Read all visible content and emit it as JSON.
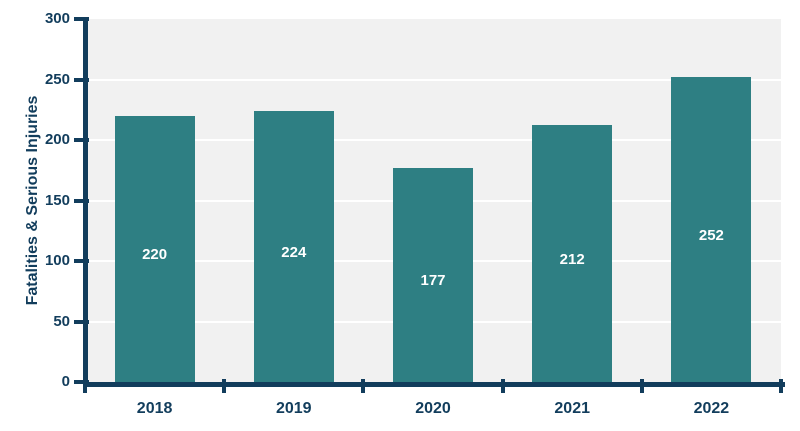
{
  "chart_data": {
    "type": "bar",
    "title": "",
    "xlabel": "",
    "ylabel": "Fatalities & Serious Injuries",
    "categories": [
      "2018",
      "2019",
      "2020",
      "2021",
      "2022"
    ],
    "values": [
      220,
      224,
      177,
      212,
      252
    ],
    "value_labels": [
      "220",
      "224",
      "177",
      "212",
      "252"
    ],
    "ylim": [
      0,
      300
    ],
    "yticks": [
      0,
      50,
      100,
      150,
      200,
      250,
      300
    ],
    "grid": "horizontal-white-lines",
    "legend_position": "none",
    "colors": {
      "bar": "#2E7F83",
      "axis_and_text": "#123D5C",
      "plot_background": "#F1F1F1",
      "gridline": "#FFFFFF",
      "bar_value_label": "#FFFFFF",
      "page_background": "#FFFFFF"
    }
  }
}
